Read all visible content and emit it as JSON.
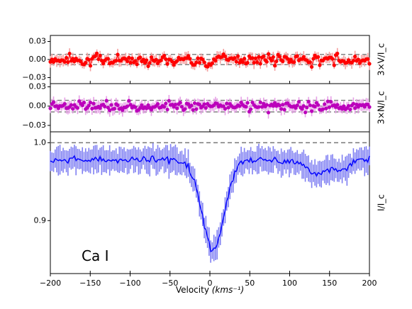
{
  "chart_data": {
    "type": "line",
    "species_label": "Ca I",
    "xlabel": "Velocity",
    "xlabel_unit": "(kms⁻¹)",
    "xlim": [
      -200,
      200
    ],
    "x_ticks": [
      -200,
      -150,
      -100,
      -50,
      0,
      50,
      100,
      150,
      200
    ],
    "x_tick_labels": [
      "−200",
      "−150",
      "−100",
      "−50",
      "0",
      "50",
      "100",
      "150",
      "200"
    ],
    "panels": [
      {
        "id": "V",
        "ylabel": "3×V/I_c",
        "ylim": [
          -0.04,
          0.04
        ],
        "y_ticks": [
          0.03,
          0.0,
          -0.03
        ],
        "y_tick_labels": [
          "0.03",
          "0.00",
          "−0.03"
        ],
        "ref_lines": [
          0.0,
          0.0085,
          -0.0085
        ],
        "color": "#ff0000",
        "err_color": "#f4a0a0",
        "style": "line+markers",
        "noise_sigma": 0.009,
        "error": 0.008,
        "features": [
          {
            "x": -3,
            "dy": -0.012,
            "w": 5
          },
          {
            "x": 10,
            "dy": 0.008,
            "w": 5
          }
        ]
      },
      {
        "id": "N",
        "ylabel": "3×N/I_c",
        "ylim": [
          -0.04,
          0.035
        ],
        "y_ticks": [
          0.03,
          0.0,
          -0.03
        ],
        "y_tick_labels": [
          "0.03",
          "0.00",
          "−0.03"
        ],
        "ref_lines": [
          0.0,
          0.009,
          -0.009
        ],
        "color": "#bb00bb",
        "err_color": "#e6a0e6",
        "style": "markers",
        "noise_sigma": 0.008,
        "error": 0.008,
        "features": []
      },
      {
        "id": "I",
        "ylabel": "I/I_c",
        "ylim": [
          0.832,
          1.014
        ],
        "y_ticks": [
          1.0,
          0.9
        ],
        "y_tick_labels": [
          "1.0",
          "0.9"
        ],
        "ref_lines": [
          1.0
        ],
        "color": "#0000ff",
        "err_color": "#7f7ff2",
        "style": "line",
        "continuum": 0.978,
        "noise_sigma": 0.006,
        "error": 0.015,
        "absorption": {
          "center": 4,
          "depth": 0.115,
          "sigma": 14
        },
        "secondary_dips": [
          {
            "center": 135,
            "depth": 0.018,
            "sigma": 14
          },
          {
            "center": 165,
            "depth": 0.012,
            "sigma": 8
          }
        ]
      }
    ],
    "n_points": 200
  }
}
